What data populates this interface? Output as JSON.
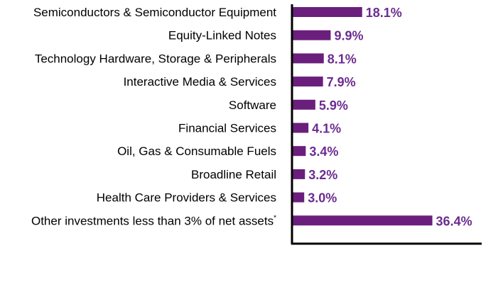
{
  "chart_data": {
    "type": "bar",
    "orientation": "horizontal",
    "categories": [
      "Semiconductors & Semiconductor Equipment",
      "Equity-Linked Notes",
      "Technology Hardware, Storage & Peripherals",
      "Interactive Media & Services",
      "Software",
      "Financial Services",
      "Oil, Gas & Consumable Fuels",
      "Broadline Retail",
      "Health Care Providers & Services",
      "Other investments less than 3% of net assets"
    ],
    "category_footnotes": [
      "",
      "",
      "",
      "",
      "",
      "",
      "",
      "",
      "",
      "*"
    ],
    "values": [
      18.1,
      9.9,
      8.1,
      7.9,
      5.9,
      4.1,
      3.4,
      3.2,
      3.0,
      36.4
    ],
    "value_labels": [
      "18.1%",
      "9.9%",
      "8.1%",
      "7.9%",
      "5.9%",
      "4.1%",
      "3.4%",
      "3.2%",
      "3.0%",
      "36.4%"
    ],
    "title": "",
    "xlabel": "",
    "ylabel": "",
    "xlim": [
      0,
      40
    ],
    "grid": false,
    "legend": "none",
    "bar_color": "#6B1F7C",
    "label_color": "#6B2C91",
    "axis_color": "#000000"
  }
}
